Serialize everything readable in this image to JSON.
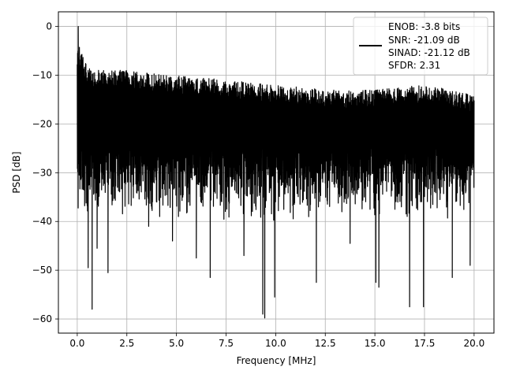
{
  "chart_data": {
    "type": "line",
    "title": "",
    "xlabel": "Frequency [MHz]",
    "ylabel": "PSD [dB]",
    "xlim": [
      -0.95,
      21.0
    ],
    "ylim": [
      -62.9,
      3.0
    ],
    "xticks": [
      0.0,
      2.5,
      5.0,
      7.5,
      10.0,
      12.5,
      15.0,
      17.5,
      20.0
    ],
    "xtick_labels": [
      "0.0",
      "2.5",
      "5.0",
      "7.5",
      "10.0",
      "12.5",
      "15.0",
      "17.5",
      "20.0"
    ],
    "yticks": [
      0,
      -10,
      -20,
      -30,
      -40,
      -50,
      -60
    ],
    "ytick_labels": [
      "0",
      "−10",
      "−20",
      "−30",
      "−40",
      "−50",
      "−60"
    ],
    "grid": true,
    "legend": {
      "placement": "top-right",
      "lines": [
        "ENOB: -3.8 bits",
        "SNR: -21.09 dB",
        "SINAD: -21.12 dB",
        "SFDR: 2.31"
      ]
    },
    "series": [
      {
        "color": "#000000",
        "description": "noise-like power spectral density from 0 to 20 MHz with peak near 0 MHz",
        "x_range": [
          0.0,
          20.0
        ],
        "peak": {
          "x": 0.05,
          "y": 0.0
        },
        "upper_envelope": {
          "x": [
            0.1,
            0.5,
            1.0,
            2.5,
            5.0,
            7.5,
            10.0,
            12.5,
            15.0,
            17.5,
            20.0
          ],
          "y": [
            -4.0,
            -8.0,
            -9.0,
            -9.0,
            -10.0,
            -11.0,
            -12.0,
            -13.0,
            -13.0,
            -12.0,
            -14.0
          ]
        },
        "typical_floor": -30.0,
        "notable_dips": [
          {
            "x": 0.55,
            "y": -49.5
          },
          {
            "x": 0.75,
            "y": -58.0
          },
          {
            "x": 1.0,
            "y": -45.5
          },
          {
            "x": 1.55,
            "y": -50.5
          },
          {
            "x": 3.6,
            "y": -41.0
          },
          {
            "x": 4.8,
            "y": -44.0
          },
          {
            "x": 6.0,
            "y": -47.5
          },
          {
            "x": 6.7,
            "y": -51.5
          },
          {
            "x": 8.4,
            "y": -47.0
          },
          {
            "x": 9.35,
            "y": -59.0
          },
          {
            "x": 9.45,
            "y": -59.8
          },
          {
            "x": 9.95,
            "y": -55.5
          },
          {
            "x": 12.05,
            "y": -52.5
          },
          {
            "x": 13.75,
            "y": -44.5
          },
          {
            "x": 15.05,
            "y": -52.5
          },
          {
            "x": 15.2,
            "y": -53.5
          },
          {
            "x": 16.75,
            "y": -57.5
          },
          {
            "x": 17.45,
            "y": -57.5
          },
          {
            "x": 18.9,
            "y": -51.5
          },
          {
            "x": 19.8,
            "y": -49.0
          }
        ]
      }
    ]
  }
}
